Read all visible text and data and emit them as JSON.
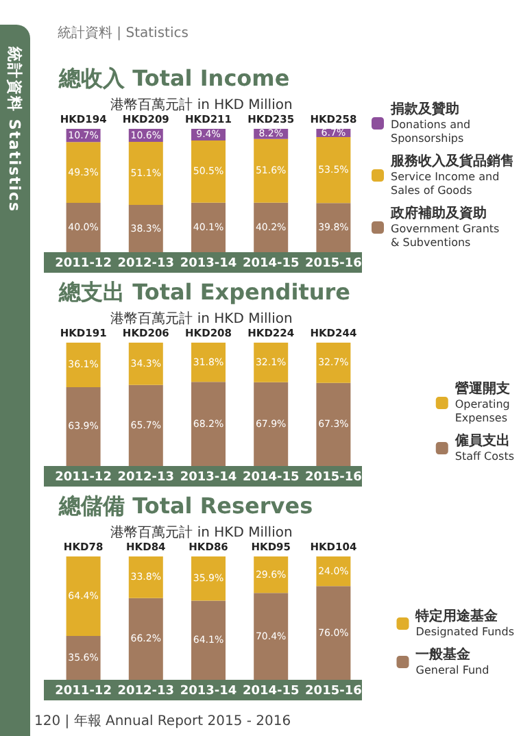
{
  "chart_data": [
    {
      "type": "bar",
      "title": "總收入 Total Income",
      "subtitle": "港幣百萬元計 in HKD Million",
      "categories": [
        "2011-12",
        "2012-13",
        "2013-14",
        "2014-15",
        "2015-16"
      ],
      "stacked": true,
      "legend": "right",
      "grid": false,
      "tick_labels": "x",
      "series": [
        {
          "name": "政府補助及資助\nGovernment Grants\n& Subventions",
          "color": "#a37b5f",
          "values": [
            40.0,
            38.3,
            40.1,
            40.2,
            39.8
          ],
          "value_labels": [
            "40.0%",
            "38.3%",
            "40.1%",
            "40.2%",
            "39.8%"
          ]
        },
        {
          "name": "服務收入及貨品銷售\nService Income and\nSales of Goods",
          "color": "#e1ae2a",
          "values": [
            49.3,
            51.1,
            50.5,
            51.6,
            53.5
          ],
          "value_labels": [
            "49.3%",
            "51.1%",
            "50.5%",
            "51.6%",
            "53.5%"
          ]
        },
        {
          "name": "捐款及贊助\nDonations and\nSponsorships",
          "color": "#8d4f9c",
          "values": [
            10.7,
            10.6,
            9.4,
            8.2,
            6.7
          ],
          "value_labels": [
            "10.7%",
            "10.6%",
            "9.4%",
            "8.2%",
            "6.7%"
          ]
        }
      ],
      "totals": [
        "HKD194",
        "HKD209",
        "HKD211",
        "HKD235",
        "HKD258"
      ],
      "annotations": [
        "統計資料 | Statistics",
        "統計資料 Statistics"
      ]
    },
    {
      "type": "bar",
      "title": "總支出 Total Expenditure",
      "subtitle": "港幣百萬元計 in HKD Million",
      "categories": [
        "2011-12",
        "2012-13",
        "2013-14",
        "2014-15",
        "2015-16"
      ],
      "stacked": true,
      "legend": "right",
      "grid": false,
      "tick_labels": "x",
      "series": [
        {
          "name": "僱員支出\nStaff Costs",
          "color": "#a37b5f",
          "values": [
            63.9,
            65.7,
            68.2,
            67.9,
            67.3
          ],
          "value_labels": [
            "63.9%",
            "65.7%",
            "68.2%",
            "67.9%",
            "67.3%"
          ]
        },
        {
          "name": "營運開支\nOperating\nExpenses",
          "color": "#e1ae2a",
          "values": [
            36.1,
            34.3,
            31.8,
            32.1,
            32.7
          ],
          "value_labels": [
            "36.1%",
            "34.3%",
            "31.8%",
            "32.1%",
            "32.7%"
          ]
        }
      ],
      "totals": [
        "HKD191",
        "HKD206",
        "HKD208",
        "HKD224",
        "HKD244"
      ]
    },
    {
      "type": "bar",
      "title": "總儲備 Total Reserves",
      "subtitle": "港幣百萬元計 in HKD Million",
      "categories": [
        "2011-12",
        "2012-13",
        "2013-14",
        "2014-15",
        "2015-16"
      ],
      "stacked": true,
      "legend": "right",
      "grid": false,
      "tick_labels": "x",
      "series": [
        {
          "name": "一般基金\nGeneral Fund",
          "color": "#a37b5f",
          "values": [
            35.6,
            66.2,
            64.1,
            70.4,
            76.0
          ],
          "value_labels": [
            "35.6%",
            "66.2%",
            "64.1%",
            "70.4%",
            "76.0%"
          ]
        },
        {
          "name": "特定用途基金\nDesignated Funds",
          "color": "#e1ae2a",
          "values": [
            64.4,
            33.8,
            35.9,
            29.6,
            24.0
          ],
          "value_labels": [
            "64.4%",
            "33.8%",
            "35.9%",
            "29.6%",
            "24.0%"
          ]
        }
      ],
      "totals": [
        "HKD78",
        "HKD84",
        "HKD86",
        "HKD95",
        "HKD104"
      ],
      "annotations": [
        "120 | 年報 Annual Report 2015 - 2016"
      ]
    }
  ]
}
